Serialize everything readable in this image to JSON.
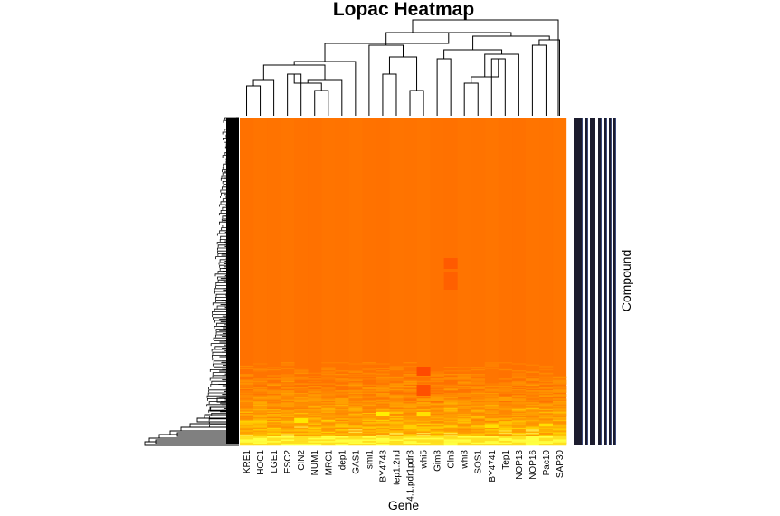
{
  "chart_data": {
    "type": "heatmap",
    "title": "Lopac Heatmap",
    "xlabel": "Gene",
    "ylabel": "Compound",
    "columns": [
      "KRE1",
      "HOC1",
      "LGE1",
      "ESC2",
      "CIN2",
      "NUM1",
      "MRC1",
      "dep1",
      "GAS1",
      "smi1",
      "BY4743",
      "tep1.2nd",
      "4.1.pdr1pdr3",
      "whi5",
      "Gim3",
      "Cln3",
      "whi3",
      "SOS1",
      "BY4741",
      "Tep1",
      "NOP13",
      "NOP16",
      "Pac10",
      "SAP30"
    ],
    "row_count": 1280,
    "colormap": "heat.colors",
    "dominant_color": "#ff7300",
    "high_color": "#ffff40",
    "low_color": "#ff0000",
    "dendrogram_color": "#000000",
    "side_bar_color": "#1c1c2e",
    "side_bar_stripe_color": "#3b4a7a"
  }
}
